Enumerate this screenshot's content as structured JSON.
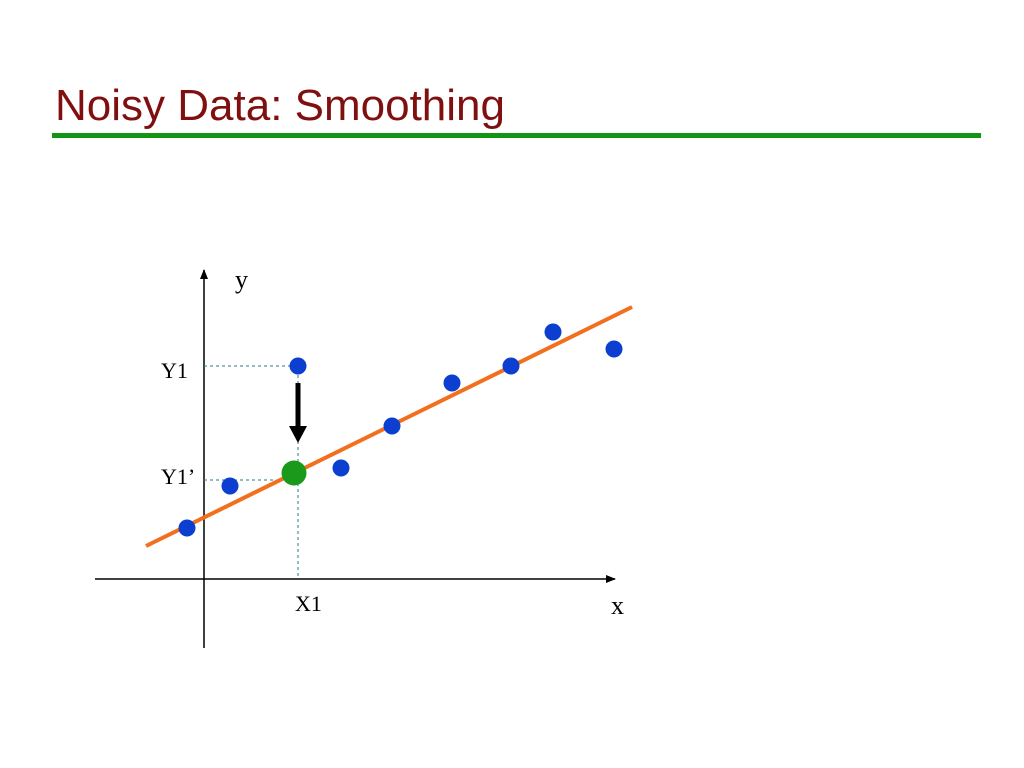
{
  "header": {
    "title": "Noisy Data: Smoothing"
  },
  "diagram": {
    "y_axis_label": "y",
    "x_axis_label": "x",
    "labels": [
      "Y1",
      "Y1’",
      "X1"
    ]
  }
}
